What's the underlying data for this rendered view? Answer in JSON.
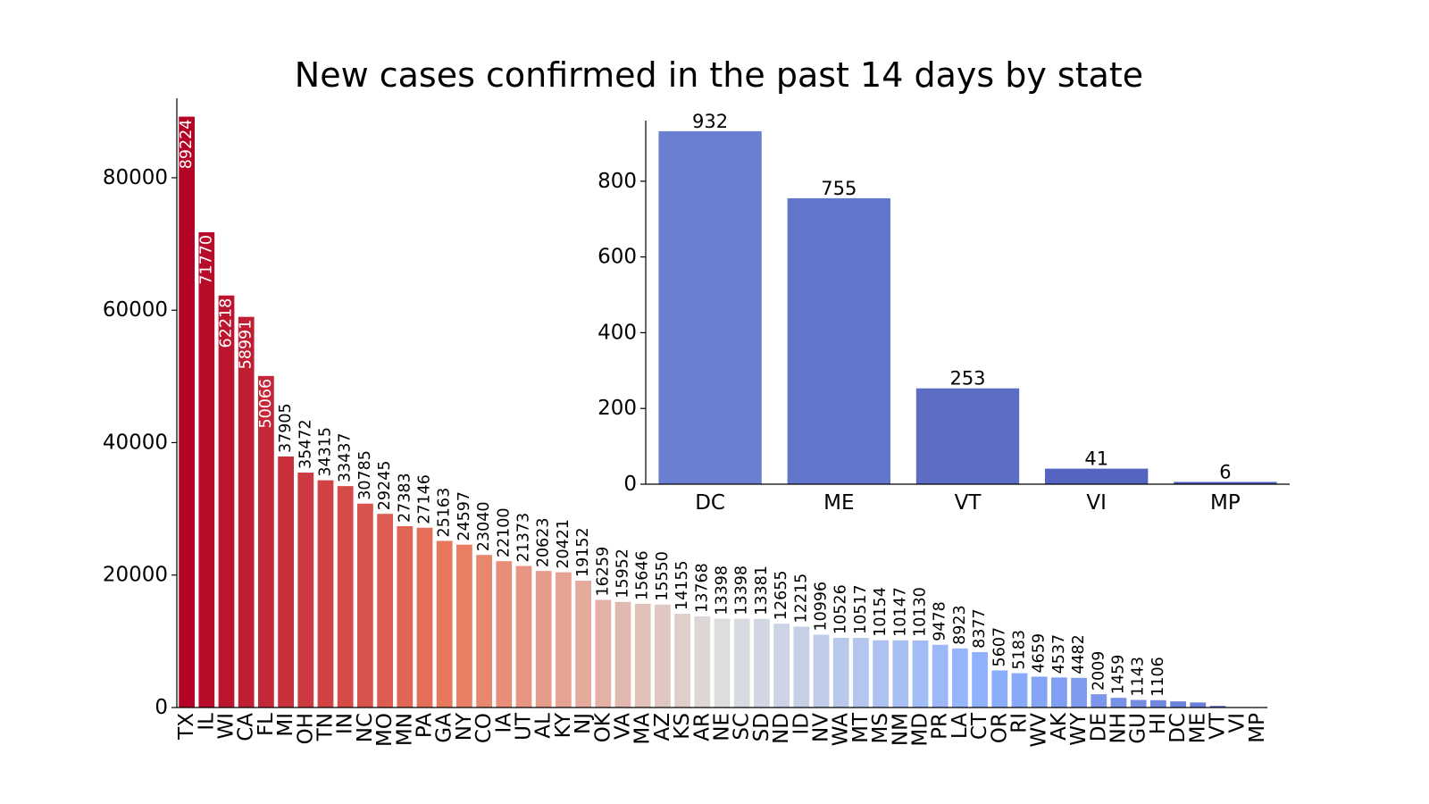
{
  "title": "New cases confirmed in the past 14 days by state",
  "chart_data": [
    {
      "type": "bar",
      "categories": [
        "TX",
        "IL",
        "WI",
        "CA",
        "FL",
        "MI",
        "OH",
        "TN",
        "IN",
        "NC",
        "MO",
        "MN",
        "PA",
        "GA",
        "NY",
        "CO",
        "IA",
        "UT",
        "AL",
        "KY",
        "NJ",
        "OK",
        "VA",
        "MA",
        "AZ",
        "KS",
        "AR",
        "NE",
        "SC",
        "SD",
        "ND",
        "ID",
        "NV",
        "WA",
        "MT",
        "MS",
        "NM",
        "MD",
        "PR",
        "LA",
        "CT",
        "OR",
        "RI",
        "WV",
        "AK",
        "WY",
        "DE",
        "NH",
        "GU",
        "HI",
        "DC",
        "ME",
        "VT",
        "VI",
        "MP"
      ],
      "values": [
        89224,
        71770,
        62218,
        58991,
        50066,
        37905,
        35472,
        34315,
        33437,
        30785,
        29245,
        27383,
        27146,
        25163,
        24597,
        23040,
        22100,
        21373,
        20623,
        20421,
        19152,
        16259,
        15952,
        15646,
        15550,
        14155,
        13768,
        13398,
        13398,
        13381,
        12655,
        12215,
        10996,
        10526,
        10517,
        10154,
        10147,
        10130,
        9478,
        8923,
        8377,
        5607,
        5183,
        4659,
        4537,
        4482,
        2009,
        1459,
        1143,
        1106,
        932,
        755,
        253,
        41,
        6
      ],
      "value_labels": [
        "89224",
        "71770",
        "62218",
        "58991",
        "50066",
        "37905",
        "35472",
        "34315",
        "33437",
        "30785",
        "29245",
        "27383",
        "27146",
        "25163",
        "24597",
        "23040",
        "22100",
        "21373",
        "20623",
        "20421",
        "19152",
        "16259",
        "15952",
        "15646",
        "15550",
        "14155",
        "13768",
        "13398",
        "13398",
        "13381",
        "12655",
        "12215",
        "10996",
        "10526",
        "10517",
        "10154",
        "10147",
        "10130",
        "9478",
        "8923",
        "8377",
        "5607",
        "5183",
        "4659",
        "4537",
        "4482",
        "2009",
        "1459",
        "1143",
        "1106",
        "",
        "",
        "",
        "",
        ""
      ],
      "ylim": [
        0,
        92000
      ],
      "yticks": [
        0,
        20000,
        40000,
        60000,
        80000
      ],
      "ytick_labels": [
        "0",
        "20000",
        "40000",
        "60000",
        "80000"
      ],
      "xlabel": "",
      "ylabel": "",
      "palette": "coolwarm (red high to blue low)"
    },
    {
      "type": "bar",
      "categories": [
        "DC",
        "ME",
        "VT",
        "VI",
        "MP"
      ],
      "values": [
        932,
        755,
        253,
        41,
        6
      ],
      "value_labels": [
        "932",
        "755",
        "253",
        "41",
        "6"
      ],
      "ylim": [
        0,
        960
      ],
      "yticks": [
        0,
        200,
        400,
        600,
        800
      ],
      "ytick_labels": [
        "0",
        "200",
        "400",
        "600",
        "800"
      ],
      "xlabel": "",
      "ylabel": "",
      "colors": [
        "#6a7fd1",
        "#6277cc",
        "#5d6dc4",
        "#5564c0",
        "#5060bc"
      ],
      "placement": "inset top-right"
    }
  ]
}
